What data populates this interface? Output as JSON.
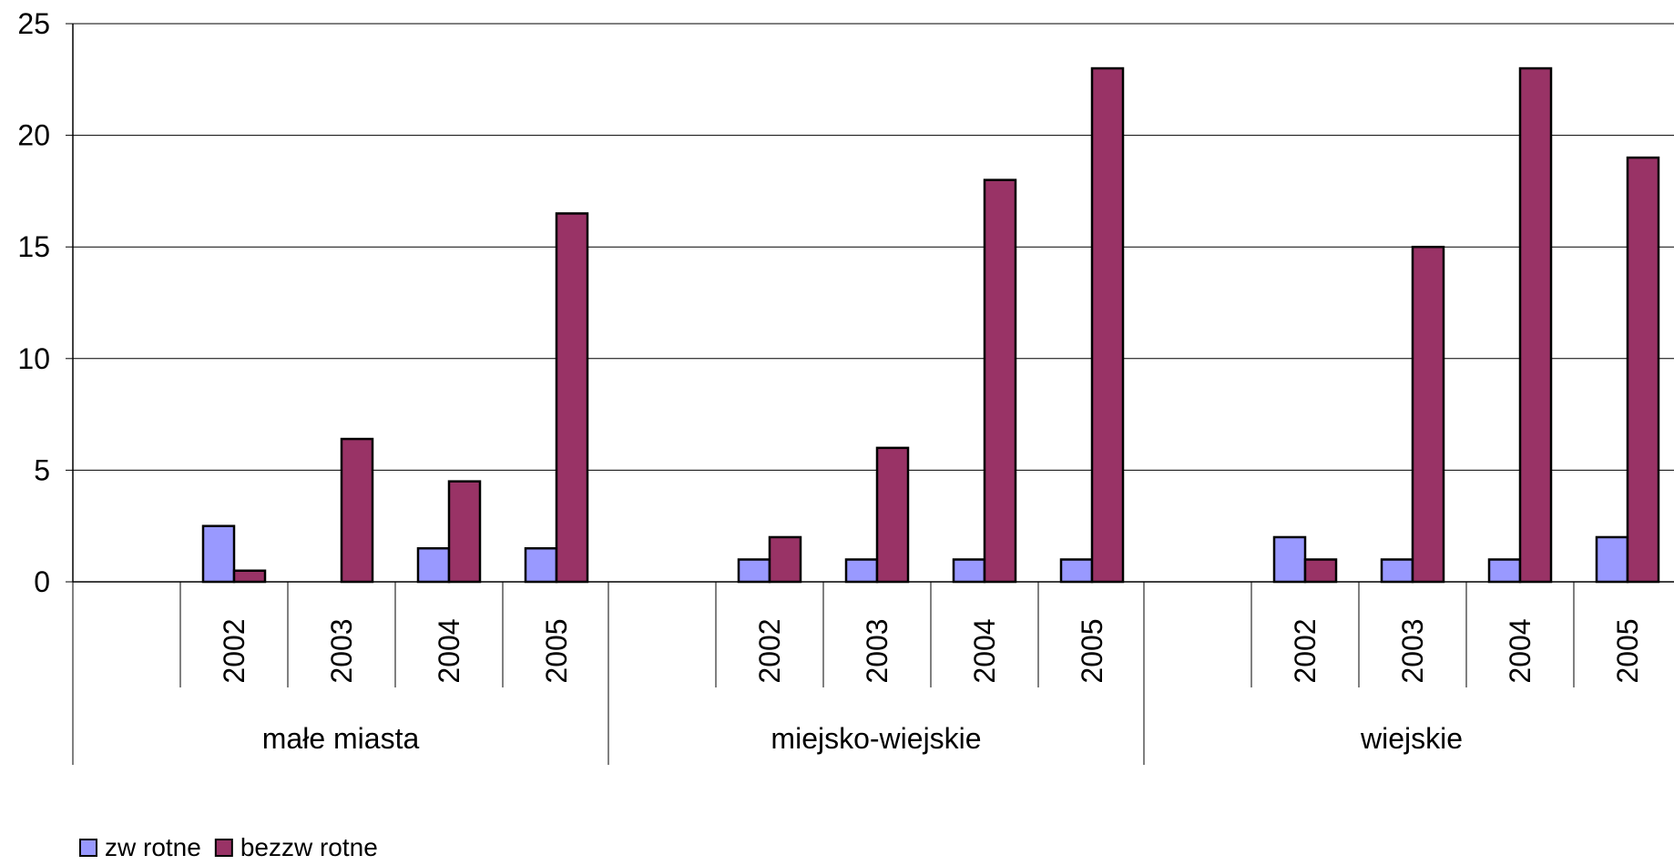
{
  "chart_data": {
    "type": "bar",
    "groups": [
      {
        "label": "małe miasta",
        "years": [
          "2002",
          "2003",
          "2004",
          "2005"
        ]
      },
      {
        "label": "miejsko-wiejskie",
        "years": [
          "2002",
          "2003",
          "2004",
          "2005"
        ]
      },
      {
        "label": "wiejskie",
        "years": [
          "2002",
          "2003",
          "2004",
          "2005"
        ]
      }
    ],
    "series": [
      {
        "name": "zw rotne",
        "color": "#9999ff",
        "values": [
          2.5,
          0,
          1.5,
          1.5,
          1,
          1,
          1,
          1,
          2,
          1,
          1,
          2
        ]
      },
      {
        "name": "bezzw rotne",
        "color": "#993366",
        "values": [
          0.5,
          6.4,
          4.5,
          16.5,
          2,
          6,
          18,
          23,
          1,
          15,
          23,
          19
        ]
      }
    ],
    "y_axis": {
      "min": 0,
      "max": 25,
      "ticks": [
        "0",
        "5",
        "10",
        "15",
        "20",
        "25"
      ]
    },
    "grid": true,
    "legend_position": "bottom-left"
  }
}
